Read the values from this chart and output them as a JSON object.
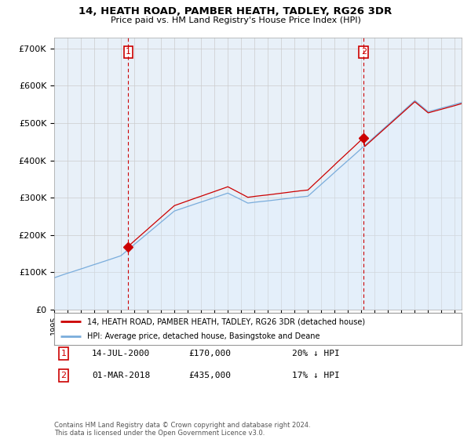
{
  "title": "14, HEATH ROAD, PAMBER HEATH, TADLEY, RG26 3DR",
  "subtitle": "Price paid vs. HM Land Registry's House Price Index (HPI)",
  "ylabel_ticks": [
    "£0",
    "£100K",
    "£200K",
    "£300K",
    "£400K",
    "£500K",
    "£600K",
    "£700K"
  ],
  "ylim": [
    0,
    730000
  ],
  "xlim_start": 1995.0,
  "xlim_end": 2025.5,
  "sale1_date": 2000.54,
  "sale1_price": 170000,
  "sale2_date": 2018.17,
  "sale2_price": 435000,
  "red_line_color": "#cc0000",
  "blue_line_color": "#7aaddc",
  "blue_fill_color": "#ddeeff",
  "marker_box_color": "#cc0000",
  "grid_color": "#cccccc",
  "bg_color": "#ffffff",
  "plot_bg_color": "#e8f0f8",
  "legend1": "14, HEATH ROAD, PAMBER HEATH, TADLEY, RG26 3DR (detached house)",
  "legend2": "HPI: Average price, detached house, Basingstoke and Deane",
  "table_row1": [
    "1",
    "14-JUL-2000",
    "£170,000",
    "20% ↓ HPI"
  ],
  "table_row2": [
    "2",
    "01-MAR-2018",
    "£435,000",
    "17% ↓ HPI"
  ],
  "footnote": "Contains HM Land Registry data © Crown copyright and database right 2024.\nThis data is licensed under the Open Government Licence v3.0.",
  "hpi_base_at_sale1": 134000,
  "hpi_base_at_sale2": 372000,
  "red_base_at_sale1": 170000,
  "red_base_at_sale2": 435000
}
